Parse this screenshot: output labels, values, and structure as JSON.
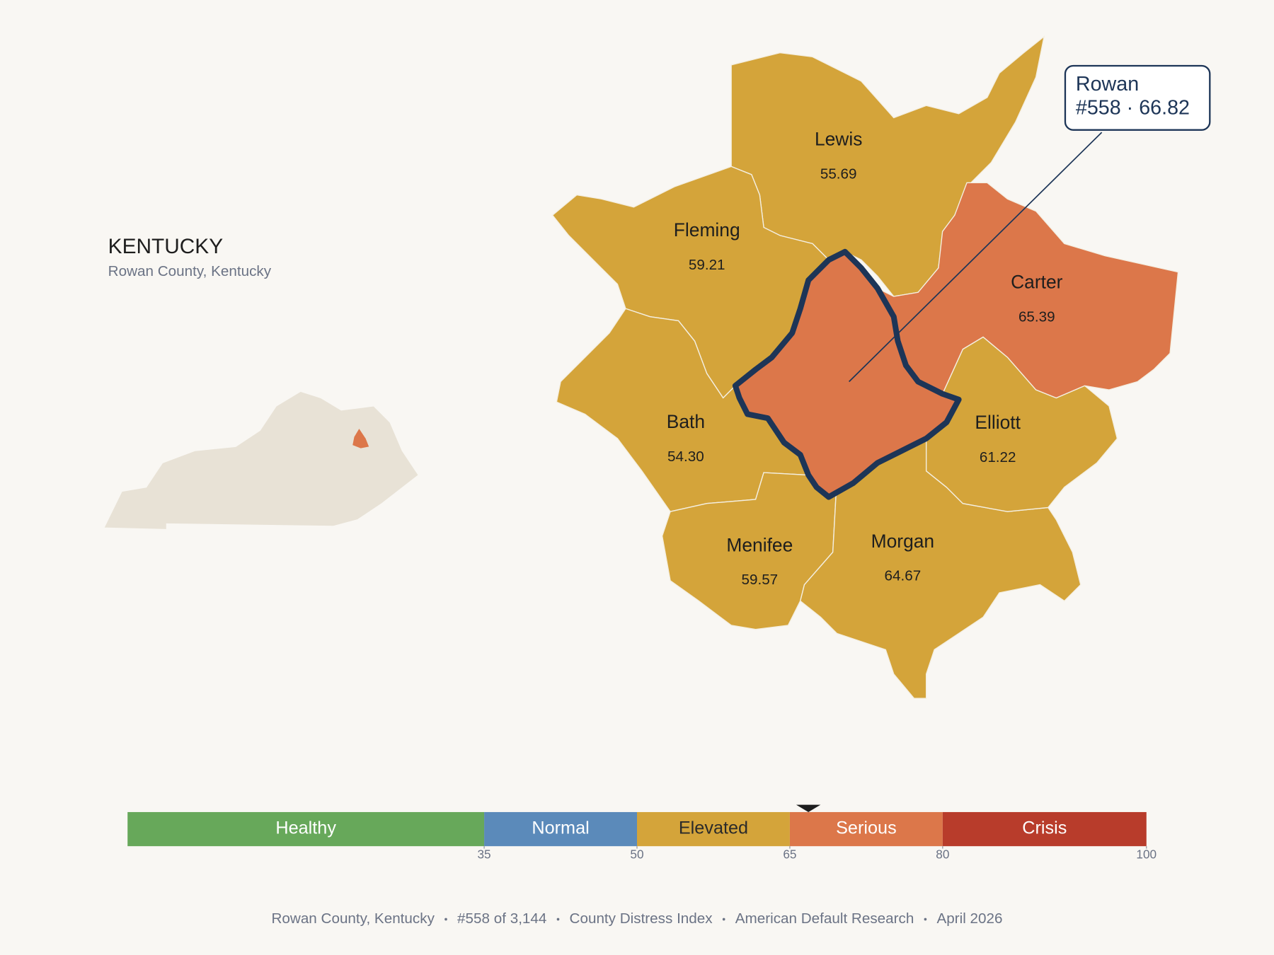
{
  "title": "KENTUCKY",
  "subtitle": "Rowan County, Kentucky",
  "focus": {
    "name": "Rowan",
    "value": 66.82,
    "value_label": "#558 · 66.82"
  },
  "counties": [
    {
      "name": "Lewis",
      "value": 55.69
    },
    {
      "name": "Fleming",
      "value": 59.21
    },
    {
      "name": "Bath",
      "value": 54.3,
      "value_label": "54.30"
    },
    {
      "name": "Menifee",
      "value": 59.57
    },
    {
      "name": "Morgan",
      "value": 64.67
    },
    {
      "name": "Elliott",
      "value": 61.22
    },
    {
      "name": "Carter",
      "value": 65.39
    }
  ],
  "scale": {
    "xlim": [
      0,
      100
    ],
    "ticks": [
      35,
      50,
      65,
      80,
      100
    ],
    "bands": [
      {
        "name": "Healthy",
        "color": "#67a85a",
        "text_color": "#ffffff"
      },
      {
        "name": "Normal",
        "color": "#5b8aba",
        "text_color": "#ffffff"
      },
      {
        "name": "Elevated",
        "color": "#d4a43a",
        "text_color": "#2a2a2a"
      },
      {
        "name": "Serious",
        "color": "#dc774a",
        "text_color": "#ffffff"
      },
      {
        "name": "Crisis",
        "color": "#b83c2b",
        "text_color": "#ffffff"
      }
    ]
  },
  "footer": [
    "Rowan County, Kentucky",
    "#558 of 3,144",
    "County Distress Index",
    "American Default Research",
    "April 2026"
  ]
}
